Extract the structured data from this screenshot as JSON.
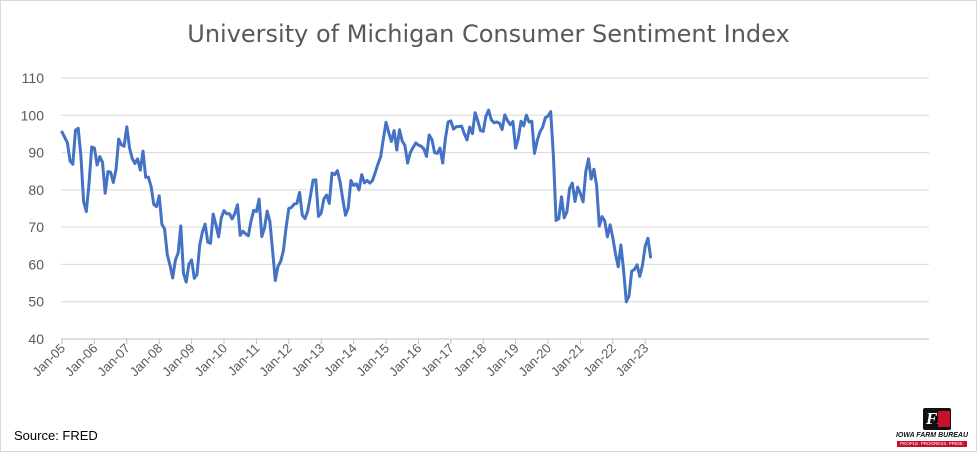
{
  "chart_data": {
    "type": "line",
    "title": "University of Michigan Consumer Sentiment Index",
    "xlabel": "",
    "ylabel": "",
    "ylim": [
      40,
      110
    ],
    "yticks": [
      "40",
      "50",
      "60",
      "70",
      "80",
      "90",
      "100",
      "110"
    ],
    "xticks": [
      "Jan-05",
      "Jan-06",
      "Jan-07",
      "Jan-08",
      "Jan-09",
      "Jan-10",
      "Jan-11",
      "Jan-12",
      "Jan-13",
      "Jan-14",
      "Jan-15",
      "Jan-16",
      "Jan-17",
      "Jan-18",
      "Jan-19",
      "Jan-20",
      "Jan-21",
      "Jan-22",
      "Jan-23"
    ],
    "grid": true,
    "line_color": "#4472C4",
    "series": [
      {
        "values": [
          95.5,
          94.1,
          92.6,
          87.7,
          86.9,
          96.0,
          96.5,
          89.1,
          76.9,
          74.2,
          81.6,
          91.5,
          91.2,
          86.7,
          88.9,
          87.4,
          79.1,
          84.9,
          84.7,
          82.0,
          85.4,
          93.6,
          92.1,
          91.7,
          96.9,
          91.3,
          88.4,
          87.1,
          88.3,
          85.3,
          90.4,
          83.4,
          83.4,
          80.9,
          76.1,
          75.5,
          78.4,
          70.8,
          69.5,
          62.6,
          59.8,
          56.4,
          61.2,
          63.0,
          70.3,
          57.6,
          55.3,
          60.1,
          61.2,
          56.3,
          57.3,
          65.1,
          68.7,
          70.8,
          66.0,
          65.7,
          73.5,
          70.6,
          67.4,
          72.5,
          74.4,
          73.6,
          73.6,
          72.2,
          73.6,
          76.0,
          67.8,
          68.9,
          68.2,
          67.7,
          71.6,
          74.5,
          74.2,
          77.5,
          67.5,
          69.8,
          74.3,
          71.5,
          63.7,
          55.7,
          59.5,
          60.8,
          63.7,
          69.9,
          75.0,
          75.3,
          76.2,
          76.4,
          79.3,
          73.2,
          72.3,
          74.3,
          78.3,
          82.6,
          82.7,
          72.9,
          73.8,
          77.6,
          78.6,
          76.4,
          84.5,
          84.1,
          85.1,
          82.1,
          77.5,
          73.2,
          75.1,
          82.5,
          81.2,
          81.6,
          80.0,
          84.1,
          81.9,
          82.5,
          81.8,
          82.5,
          84.6,
          86.9,
          88.8,
          93.6,
          98.1,
          95.4,
          93.0,
          95.9,
          90.7,
          96.1,
          93.1,
          91.9,
          87.2,
          90.0,
          91.3,
          92.6,
          92.0,
          91.7,
          91.0,
          89.0,
          94.7,
          93.5,
          90.0,
          89.8,
          91.2,
          87.2,
          93.8,
          98.2,
          98.5,
          96.3,
          96.9,
          97.0,
          97.1,
          95.1,
          93.4,
          96.8,
          95.1,
          100.7,
          98.5,
          95.9,
          95.7,
          99.7,
          101.4,
          98.8,
          98.0,
          98.2,
          97.9,
          96.2,
          100.1,
          98.6,
          97.5,
          98.3,
          91.2,
          93.8,
          98.4,
          97.2,
          100.0,
          98.2,
          98.4,
          89.8,
          93.2,
          95.5,
          96.8,
          99.3,
          99.8,
          101.0,
          89.1,
          71.8,
          72.3,
          78.1,
          72.5,
          74.1,
          80.4,
          81.8,
          76.9,
          80.7,
          79.0,
          76.8,
          84.9,
          88.3,
          82.9,
          85.5,
          81.2,
          70.3,
          72.8,
          71.7,
          67.4,
          70.6,
          67.2,
          62.8,
          59.4,
          65.2,
          58.4,
          50.0,
          51.5,
          58.2,
          58.6,
          59.9,
          56.8,
          59.8,
          64.9,
          67.0,
          62.0
        ]
      }
    ]
  },
  "source": "Source: FRED",
  "logo": {
    "mark": "FB",
    "name": "IOWA FARM BUREAU",
    "tagline": "PEOPLE. PROGRESS. PRIDE."
  }
}
